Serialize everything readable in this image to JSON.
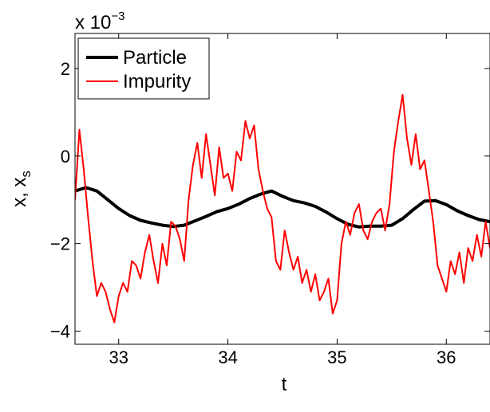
{
  "chart_data": {
    "type": "line",
    "title": "",
    "xlabel": "t",
    "ylabel": "x, x",
    "ylabel_subscript": "s",
    "y_multiplier": {
      "base": "x 10",
      "exponent": "−3"
    },
    "xlim": [
      32.6,
      36.4
    ],
    "ylim": [
      -4.3,
      2.8
    ],
    "x_ticks": [
      {
        "value": 33,
        "label": "33"
      },
      {
        "value": 34,
        "label": "34"
      },
      {
        "value": 35,
        "label": "35"
      },
      {
        "value": 36,
        "label": "36"
      }
    ],
    "y_ticks": [
      {
        "value": -4,
        "label": "−4"
      },
      {
        "value": -2,
        "label": "−2"
      },
      {
        "value": 0,
        "label": "0"
      },
      {
        "value": 2,
        "label": "2"
      }
    ],
    "grid": false,
    "legend_position": "top-left",
    "series": [
      {
        "name": "Particle",
        "color": "#000000",
        "x": [
          32.6,
          32.7,
          32.8,
          32.9,
          33.0,
          33.1,
          33.2,
          33.3,
          33.4,
          33.5,
          33.6,
          33.7,
          33.8,
          33.9,
          34.0,
          34.1,
          34.2,
          34.3,
          34.4,
          34.5,
          34.6,
          34.7,
          34.8,
          34.9,
          35.0,
          35.1,
          35.2,
          35.3,
          35.4,
          35.5,
          35.6,
          35.7,
          35.8,
          35.9,
          36.0,
          36.1,
          36.2,
          36.3,
          36.4
        ],
        "y": [
          -0.8,
          -0.72,
          -0.8,
          -1.0,
          -1.2,
          -1.36,
          -1.47,
          -1.53,
          -1.58,
          -1.61,
          -1.58,
          -1.48,
          -1.38,
          -1.27,
          -1.2,
          -1.1,
          -0.97,
          -0.87,
          -0.8,
          -0.92,
          -1.02,
          -1.07,
          -1.15,
          -1.28,
          -1.43,
          -1.56,
          -1.62,
          -1.6,
          -1.6,
          -1.58,
          -1.43,
          -1.22,
          -1.03,
          -1.02,
          -1.11,
          -1.25,
          -1.36,
          -1.45,
          -1.5
        ]
      },
      {
        "name": "Impurity",
        "color": "#ff0000",
        "x": [
          32.6,
          32.64,
          32.68,
          32.72,
          32.76,
          32.8,
          32.84,
          32.88,
          32.92,
          32.96,
          33.0,
          33.04,
          33.08,
          33.12,
          33.16,
          33.2,
          33.24,
          33.28,
          33.32,
          33.36,
          33.4,
          33.44,
          33.48,
          33.52,
          33.56,
          33.6,
          33.64,
          33.68,
          33.72,
          33.76,
          33.8,
          33.84,
          33.88,
          33.92,
          33.96,
          34.0,
          34.04,
          34.08,
          34.12,
          34.16,
          34.2,
          34.24,
          34.28,
          34.32,
          34.36,
          34.4,
          34.44,
          34.48,
          34.52,
          34.56,
          34.6,
          34.64,
          34.68,
          34.72,
          34.76,
          34.8,
          34.84,
          34.88,
          34.92,
          34.96,
          35.0,
          35.04,
          35.08,
          35.12,
          35.16,
          35.2,
          35.24,
          35.28,
          35.32,
          35.36,
          35.4,
          35.44,
          35.48,
          35.52,
          35.56,
          35.6,
          35.64,
          35.68,
          35.72,
          35.76,
          35.8,
          35.84,
          35.88,
          35.92,
          35.96,
          36.0,
          36.04,
          36.08,
          36.12,
          36.16,
          36.2,
          36.24,
          36.28,
          36.32,
          36.36,
          36.4
        ],
        "y": [
          -1.0,
          0.6,
          -0.3,
          -1.4,
          -2.4,
          -3.2,
          -2.9,
          -3.1,
          -3.5,
          -3.8,
          -3.2,
          -2.9,
          -3.1,
          -2.4,
          -2.5,
          -2.8,
          -2.2,
          -1.8,
          -2.4,
          -2.9,
          -2.0,
          -2.5,
          -1.5,
          -1.6,
          -1.9,
          -2.4,
          -1.0,
          -0.2,
          0.3,
          -0.5,
          0.5,
          -0.2,
          -0.9,
          0.2,
          -0.5,
          -0.4,
          -0.8,
          0.1,
          -0.1,
          0.8,
          0.4,
          0.7,
          -0.3,
          -0.8,
          -1.2,
          -1.4,
          -2.4,
          -2.6,
          -1.7,
          -2.2,
          -2.6,
          -2.3,
          -2.9,
          -2.6,
          -3.1,
          -2.7,
          -3.3,
          -3.1,
          -2.8,
          -3.6,
          -3.3,
          -2.0,
          -1.5,
          -1.8,
          -1.3,
          -1.1,
          -1.7,
          -1.9,
          -1.5,
          -1.3,
          -1.2,
          -1.7,
          -1.1,
          0.1,
          0.8,
          1.4,
          0.4,
          -0.2,
          0.5,
          -0.3,
          -0.1,
          -0.8,
          -1.5,
          -2.5,
          -2.8,
          -3.1,
          -2.4,
          -2.7,
          -2.2,
          -2.9,
          -2.1,
          -2.4,
          -1.8,
          -2.3,
          -1.5,
          -2.1
        ]
      }
    ]
  }
}
